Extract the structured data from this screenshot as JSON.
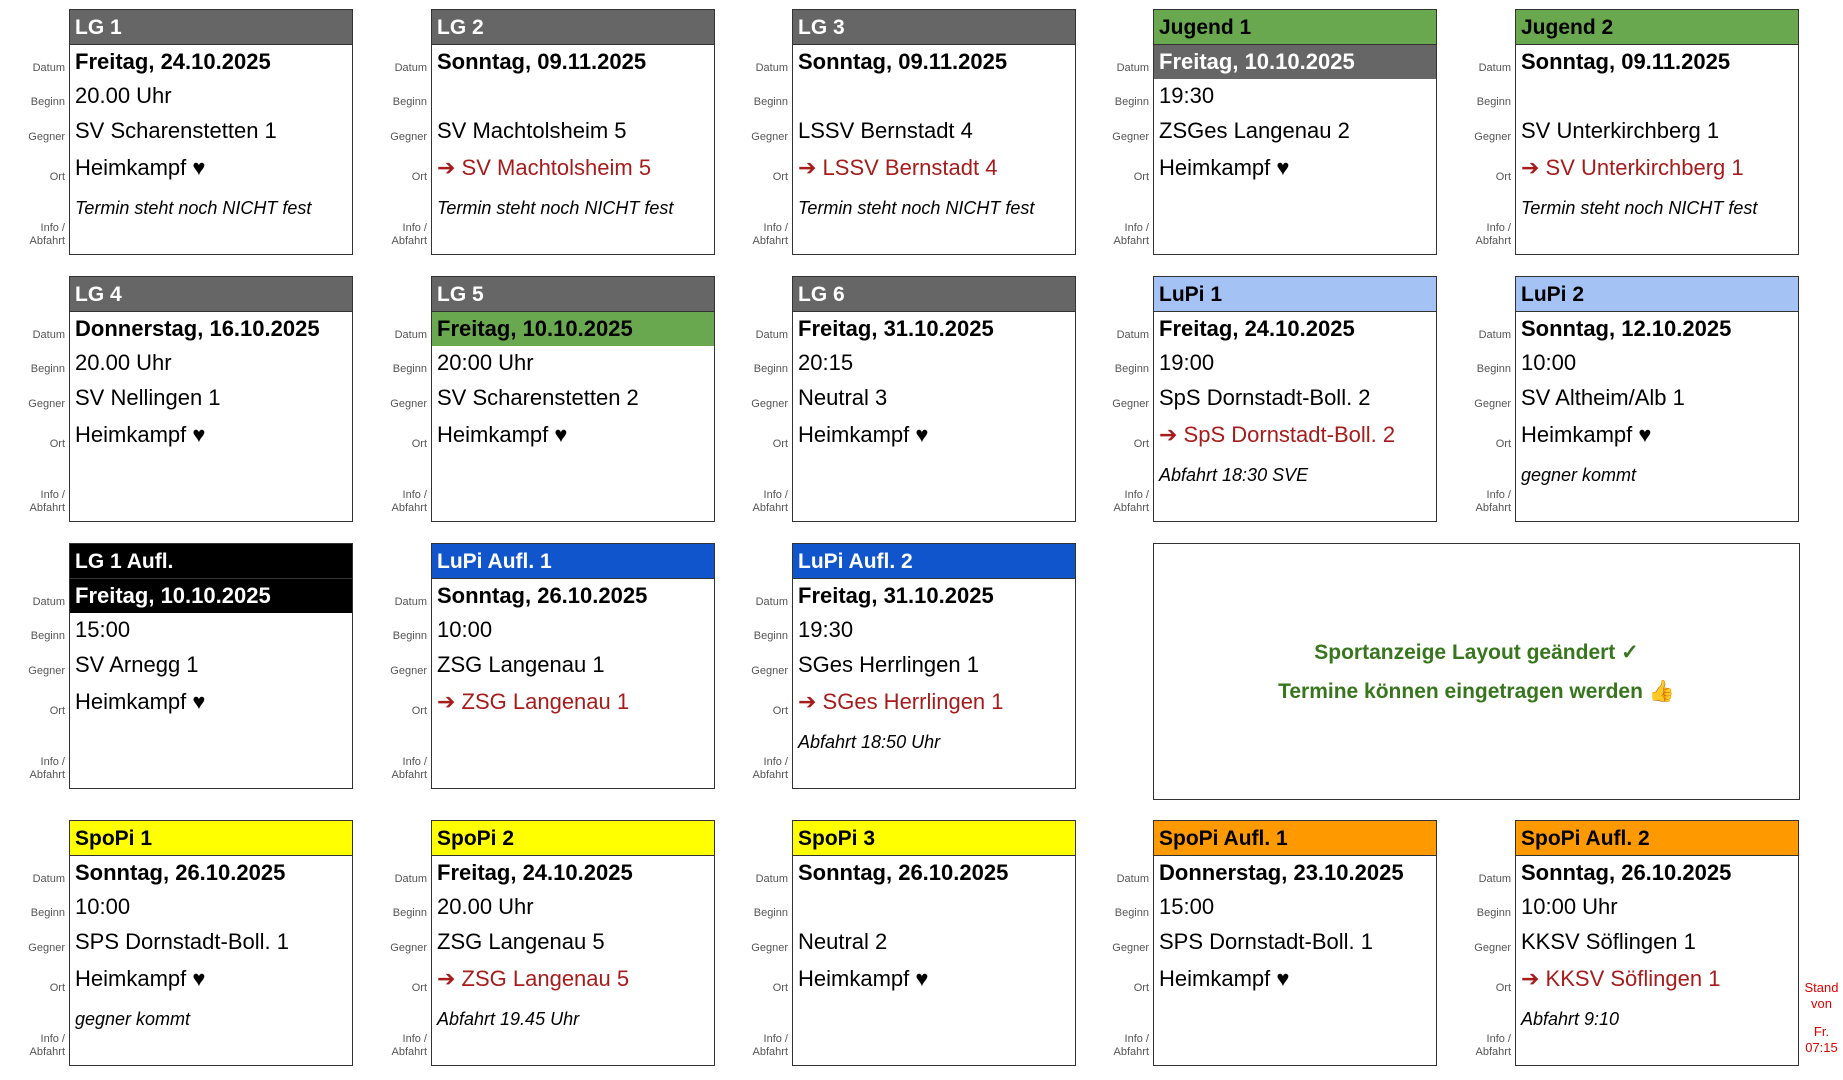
{
  "labels": {
    "date": "Datum",
    "time": "Beginn",
    "opponent": "Gegner",
    "location": "Ort",
    "info": "Info /",
    "info2": "Abfahrt"
  },
  "cards": [
    {
      "title": "LG 1",
      "date": "Freitag, 24.10.2025",
      "time": "20.00 Uhr",
      "opponent": "SV Scharenstetten 1",
      "location": "Heimkampf ♥",
      "info": "Termin steht noch NICHT fest"
    },
    {
      "title": "LG 2",
      "date": "Sonntag, 09.11.2025",
      "opponent": "SV Machtolsheim 5",
      "location": "➔ SV Machtolsheim 5",
      "info": "Termin steht noch NICHT fest"
    },
    {
      "title": "LG 3",
      "date": "Sonntag, 09.11.2025",
      "opponent": "LSSV Bernstadt 4",
      "location": "➔ LSSV Bernstadt 4",
      "info": "Termin steht noch NICHT fest"
    },
    {
      "title": "Jugend 1",
      "date": "Freitag, 10.10.2025",
      "time": "19:30",
      "opponent": "ZSGes Langenau 2",
      "location": "Heimkampf ♥"
    },
    {
      "title": "Jugend 2",
      "date": "Sonntag, 09.11.2025",
      "opponent": "SV Unterkirchberg 1",
      "location": "➔ SV Unterkirchberg 1",
      "info": "Termin steht noch NICHT fest"
    },
    {
      "title": "LG 4",
      "date": "Donnerstag, 16.10.2025",
      "time": "20.00 Uhr",
      "opponent": "SV Nellingen 1",
      "location": "Heimkampf ♥"
    },
    {
      "title": "LG 5",
      "date": "Freitag, 10.10.2025",
      "time": "20:00 Uhr",
      "opponent": "SV Scharenstetten 2",
      "location": "Heimkampf ♥"
    },
    {
      "title": "LG 6",
      "date": "Freitag, 31.10.2025",
      "time": "20:15",
      "opponent": "Neutral 3",
      "location": "Heimkampf ♥"
    },
    {
      "title": "LuPi 1",
      "date": "Freitag, 24.10.2025",
      "time": "19:00",
      "opponent": "SpS Dornstadt-Boll. 2",
      "location": "➔ SpS Dornstadt-Boll. 2",
      "info": "Abfahrt 18:30 SVE"
    },
    {
      "title": "LuPi 2",
      "date": "Sonntag, 12.10.2025",
      "time": "10:00",
      "opponent": "SV Altheim/Alb 1",
      "location": "Heimkampf ♥",
      "info": "gegner kommt"
    },
    {
      "title": "LG 1 Aufl.",
      "date": "Freitag, 10.10.2025",
      "time": "15:00",
      "opponent": "SV Arnegg 1",
      "location": "Heimkampf ♥"
    },
    {
      "title": "LuPi Aufl. 1",
      "date": "Sonntag, 26.10.2025",
      "time": "10:00",
      "opponent": "ZSG Langenau 1",
      "location": "➔ ZSG Langenau 1"
    },
    {
      "title": "LuPi Aufl. 2",
      "date": "Freitag, 31.10.2025",
      "time": "19:30",
      "opponent": "SGes Herrlingen 1",
      "location": "➔ SGes Herrlingen 1",
      "info": "Abfahrt 18:50 Uhr"
    },
    {
      "title": "SpoPi 1",
      "date": "Sonntag, 26.10.2025",
      "time": "10:00",
      "opponent": "SPS Dornstadt-Boll. 1",
      "location": "Heimkampf ♥",
      "info": "gegner kommt"
    },
    {
      "title": "SpoPi 2",
      "date": "Freitag, 24.10.2025",
      "time": "20.00 Uhr",
      "opponent": "ZSG Langenau 5",
      "location": "➔ ZSG Langenau 5",
      "info": "Abfahrt 19.45 Uhr"
    },
    {
      "title": "SpoPi 3",
      "date": "Sonntag, 26.10.2025",
      "opponent": "Neutral 2",
      "location": "Heimkampf ♥"
    },
    {
      "title": "SpoPi Aufl. 1",
      "date": "Donnerstag, 23.10.2025",
      "time": "15:00",
      "opponent": "SPS Dornstadt-Boll. 1",
      "location": "Heimkampf ♥"
    },
    {
      "title": "SpoPi Aufl. 2",
      "date": "Sonntag, 26.10.2025",
      "time": "10:00 Uhr",
      "opponent": "KKSV Söflingen 1",
      "location": "➔ KKSV Söflingen 1",
      "info": "Abfahrt 9:10"
    }
  ],
  "notice": {
    "line1": "Sportanzeige Layout geändert ✓",
    "line2": "Termine können eingetragen werden 👍"
  },
  "stand": [
    "Stand",
    "von",
    "Fr.",
    "07:15"
  ]
}
